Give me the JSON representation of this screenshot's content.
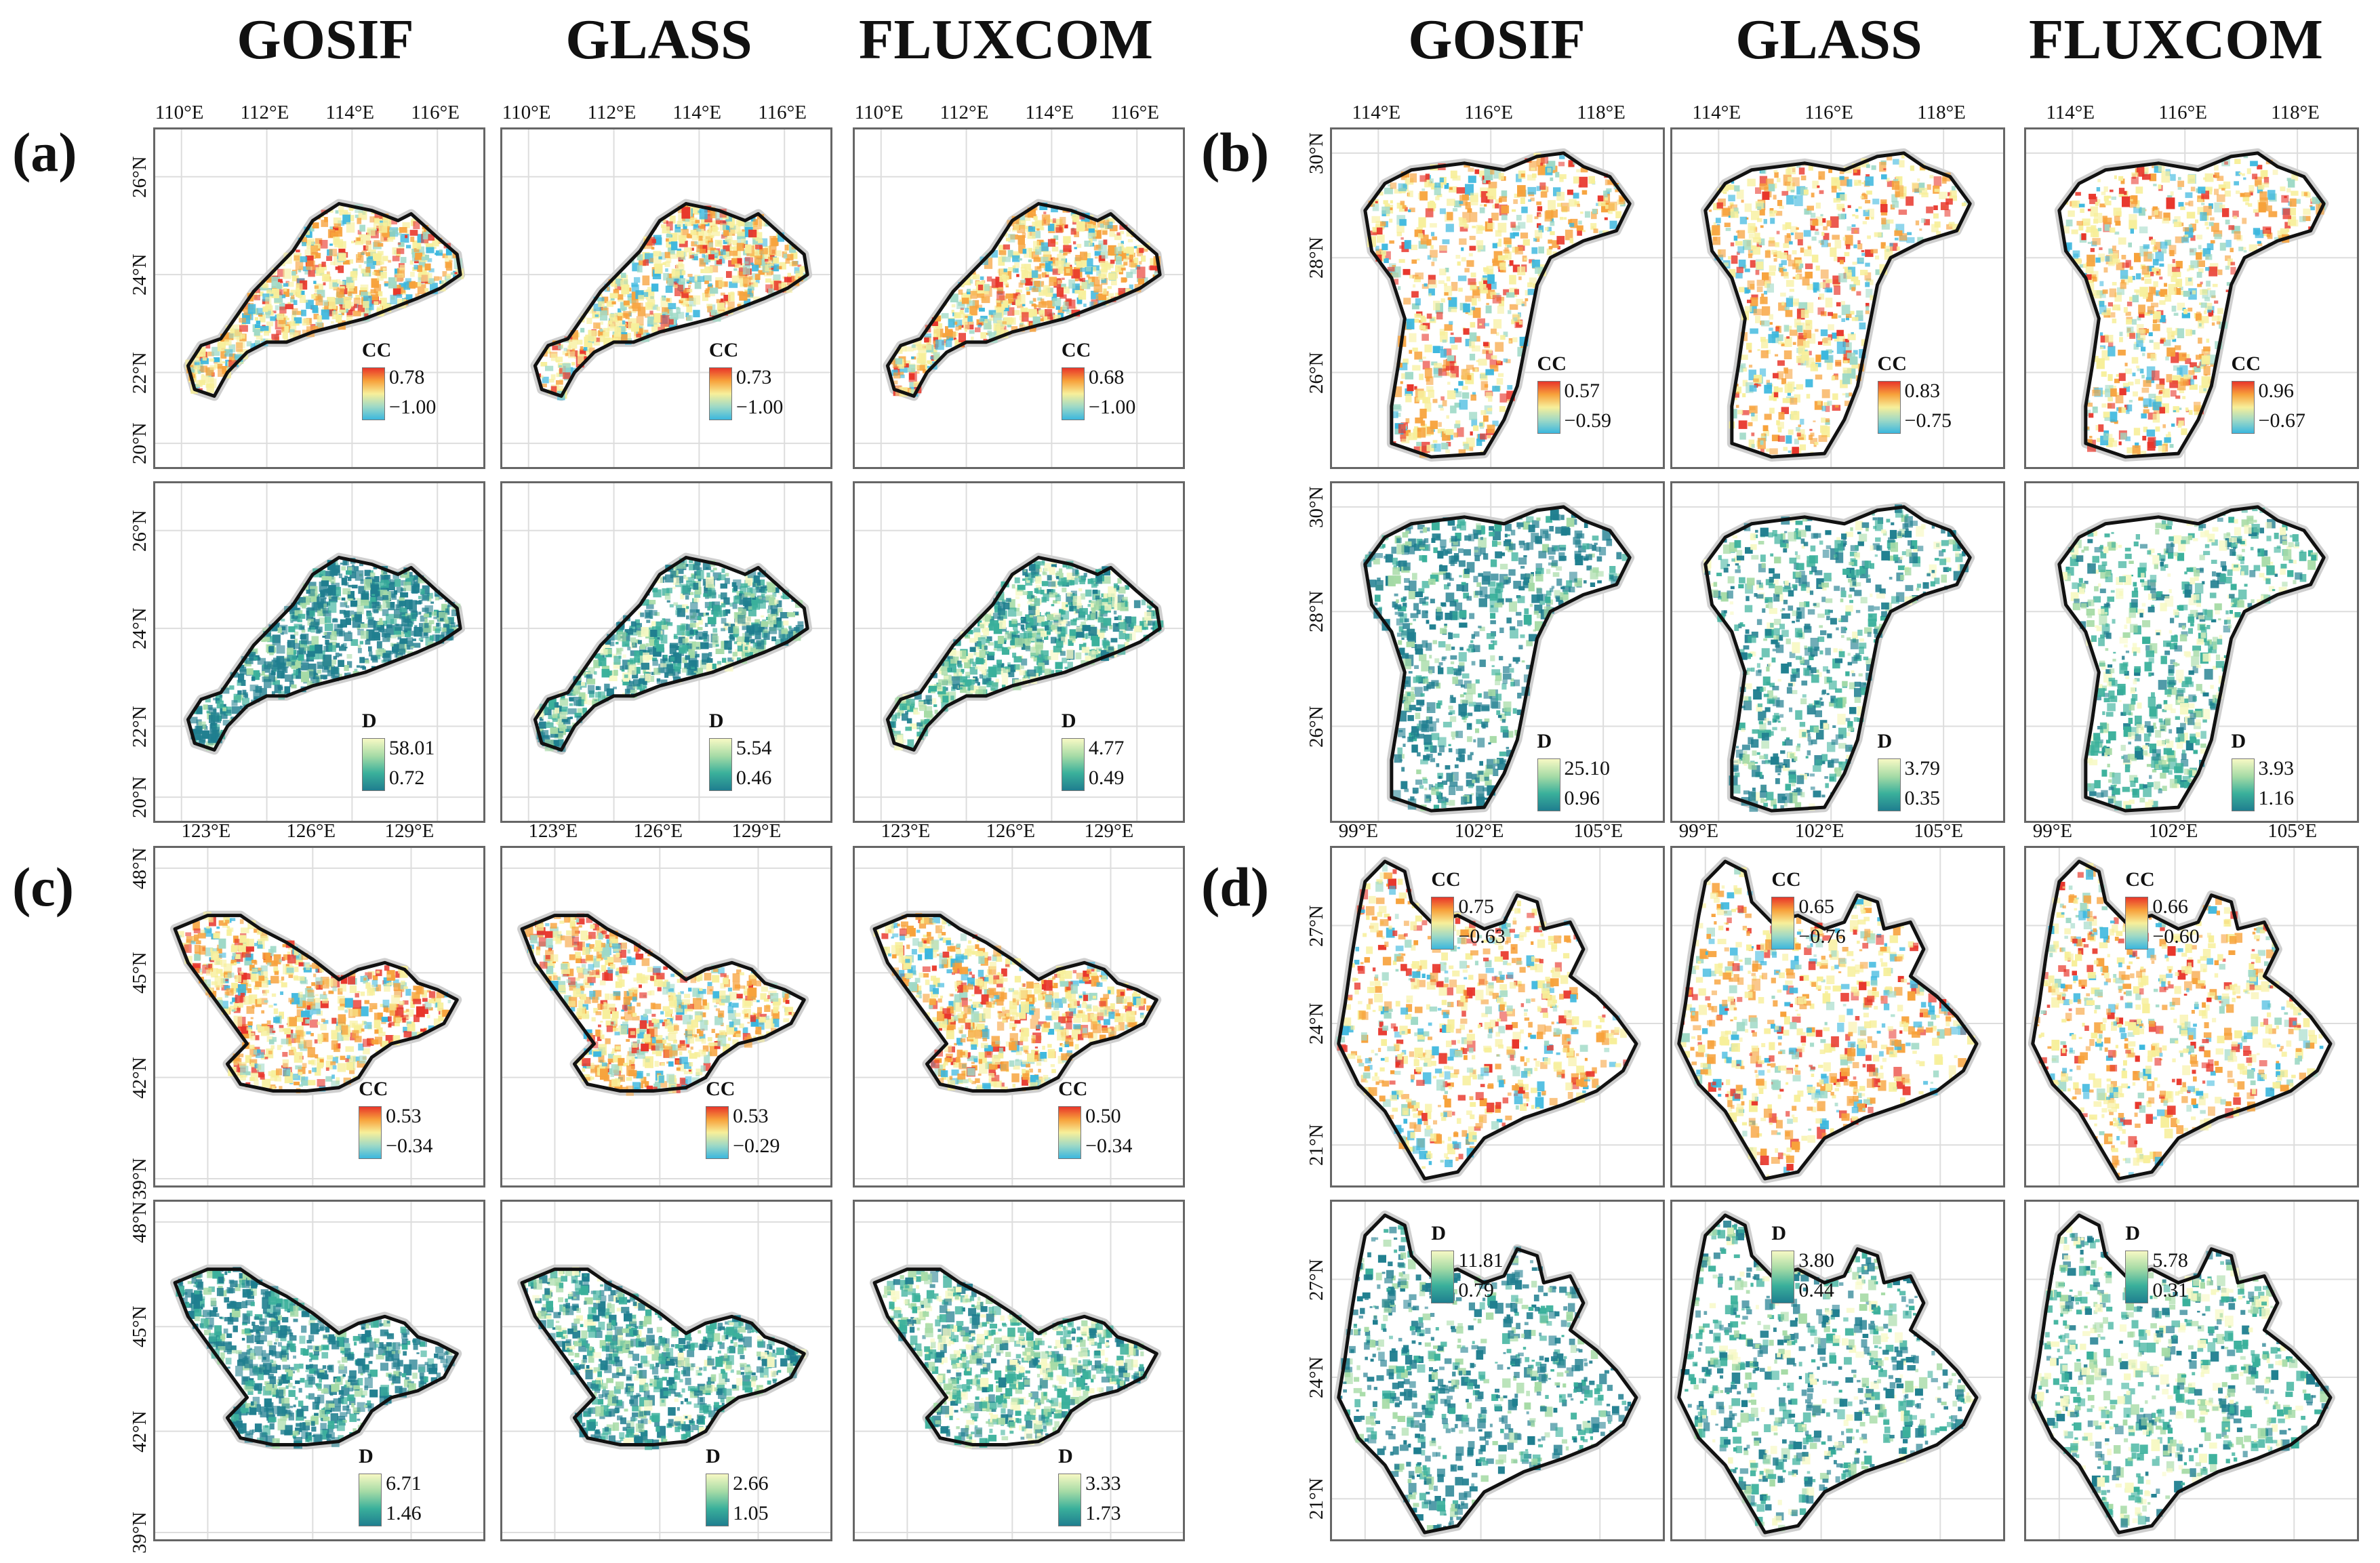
{
  "columns": {
    "left": [
      "GOSIF",
      "GLASS",
      "FLUXCOM"
    ],
    "right": [
      "GOSIF",
      "GLASS",
      "FLUXCOM"
    ]
  },
  "panels": {
    "a": {
      "label": "(a)",
      "lon_ticks": [
        "110°E",
        "112°E",
        "114°E",
        "116°E"
      ],
      "lat_ticks": [
        "26°N",
        "24°N",
        "22°N",
        "20°N"
      ],
      "cc": [
        {
          "title": "CC",
          "max": "0.78",
          "min": "−1.00"
        },
        {
          "title": "CC",
          "max": "0.73",
          "min": "−1.00"
        },
        {
          "title": "CC",
          "max": "0.68",
          "min": "−1.00"
        }
      ],
      "d": [
        {
          "title": "D",
          "max": "58.01",
          "min": "0.72"
        },
        {
          "title": "D",
          "max": "5.54",
          "min": "0.46"
        },
        {
          "title": "D",
          "max": "4.77",
          "min": "0.49"
        }
      ]
    },
    "b": {
      "label": "(b)",
      "lon_ticks": [
        "114°E",
        "116°E",
        "118°E"
      ],
      "lat_ticks": [
        "30°N",
        "28°N",
        "26°N"
      ],
      "cc": [
        {
          "title": "CC",
          "max": "0.57",
          "min": "−0.59"
        },
        {
          "title": "CC",
          "max": "0.83",
          "min": "−0.75"
        },
        {
          "title": "CC",
          "max": "0.96",
          "min": "−0.67"
        }
      ],
      "d": [
        {
          "title": "D",
          "max": "25.10",
          "min": "0.96"
        },
        {
          "title": "D",
          "max": "3.79",
          "min": "0.35"
        },
        {
          "title": "D",
          "max": "3.93",
          "min": "1.16"
        }
      ]
    },
    "c": {
      "label": "(c)",
      "lon_ticks": [
        "123°E",
        "126°E",
        "129°E"
      ],
      "lat_ticks": [
        "48°N",
        "45°N",
        "42°N",
        "39°N"
      ],
      "cc": [
        {
          "title": "CC",
          "max": "0.53",
          "min": "−0.34"
        },
        {
          "title": "CC",
          "max": "0.53",
          "min": "−0.29"
        },
        {
          "title": "CC",
          "max": "0.50",
          "min": "−0.34"
        }
      ],
      "d": [
        {
          "title": "D",
          "max": "6.71",
          "min": "1.46"
        },
        {
          "title": "D",
          "max": "2.66",
          "min": "1.05"
        },
        {
          "title": "D",
          "max": "3.33",
          "min": "1.73"
        }
      ]
    },
    "d": {
      "label": "(d)",
      "lon_ticks": [
        "99°E",
        "102°E",
        "105°E"
      ],
      "lat_ticks": [
        "27°N",
        "24°N",
        "21°N"
      ],
      "cc": [
        {
          "title": "CC",
          "max": "0.75",
          "min": "−0.63"
        },
        {
          "title": "CC",
          "max": "0.65",
          "min": "−0.76"
        },
        {
          "title": "CC",
          "max": "0.66",
          "min": "−0.60"
        }
      ],
      "d": [
        {
          "title": "D",
          "max": "11.81",
          "min": "0.79"
        },
        {
          "title": "D",
          "max": "3.80",
          "min": "0.44"
        },
        {
          "title": "D",
          "max": "5.78",
          "min": "0.31"
        }
      ]
    }
  },
  "colors": {
    "cc_ramp": [
      "#e8352a",
      "#f7a23b",
      "#f7ef9a",
      "#9ed9c6",
      "#3bb7de"
    ],
    "d_ramp": [
      "#f7f9c4",
      "#a6dba6",
      "#3ab09b",
      "#1f7e8f"
    ],
    "boundary": "#111111",
    "frame": "#666666"
  }
}
